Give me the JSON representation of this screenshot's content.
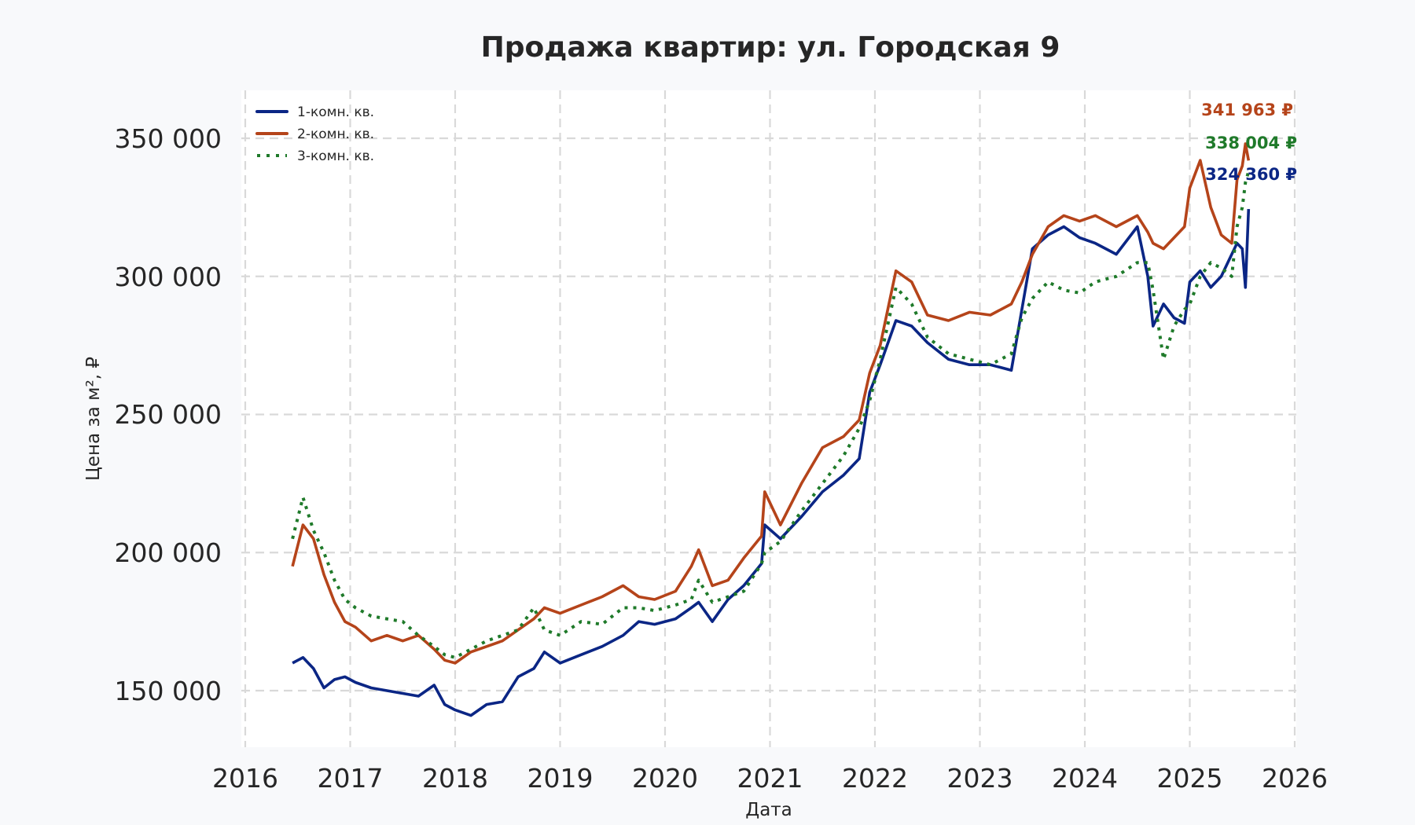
{
  "chart_data": {
    "type": "line",
    "title": "Продажа квартир: ул. Городская 9",
    "xlabel": "Дата",
    "ylabel": "Цена за м², ₽",
    "xlim": [
      2016,
      2026
    ],
    "ylim": [
      130000,
      365000
    ],
    "grid": true,
    "legend_position": "upper left",
    "x_ticks": [
      "2016",
      "2017",
      "2018",
      "2019",
      "2020",
      "2021",
      "2022",
      "2023",
      "2024",
      "2025",
      "2026"
    ],
    "y_ticks": [
      "150 000",
      "200 000",
      "250 000",
      "300 000",
      "350 000"
    ],
    "y_tick_values": [
      150000,
      200000,
      250000,
      300000,
      350000
    ],
    "x": [
      2016.45,
      2016.55,
      2016.65,
      2016.75,
      2016.85,
      2016.95,
      2017.05,
      2017.2,
      2017.35,
      2017.5,
      2017.65,
      2017.8,
      2017.9,
      2018.0,
      2018.15,
      2018.3,
      2018.45,
      2018.6,
      2018.75,
      2018.85,
      2019.0,
      2019.2,
      2019.4,
      2019.6,
      2019.75,
      2019.9,
      2020.1,
      2020.25,
      2020.32,
      2020.45,
      2020.6,
      2020.75,
      2020.92,
      2020.95,
      2021.1,
      2021.3,
      2021.5,
      2021.7,
      2021.85,
      2021.95,
      2022.05,
      2022.2,
      2022.35,
      2022.5,
      2022.7,
      2022.9,
      2023.1,
      2023.3,
      2023.4,
      2023.5,
      2023.65,
      2023.8,
      2023.95,
      2024.1,
      2024.3,
      2024.5,
      2024.6,
      2024.65,
      2024.75,
      2024.85,
      2024.95,
      2025.0,
      2025.1,
      2025.2,
      2025.3,
      2025.4,
      2025.45,
      2025.5,
      2025.53,
      2025.56
    ],
    "series": [
      {
        "name": "1-комн. кв.",
        "color": "#0b2685",
        "style": "solid",
        "values": [
          160000,
          162000,
          158000,
          151000,
          154000,
          155000,
          153000,
          151000,
          150000,
          149000,
          148000,
          152000,
          145000,
          143000,
          141000,
          145000,
          146000,
          155000,
          158000,
          164000,
          160000,
          163000,
          166000,
          170000,
          175000,
          174000,
          176000,
          180000,
          182000,
          175000,
          183000,
          188000,
          196000,
          210000,
          205000,
          213000,
          222000,
          228000,
          234000,
          258000,
          268000,
          284000,
          282000,
          276000,
          270000,
          268000,
          268000,
          266000,
          288000,
          310000,
          315000,
          318000,
          314000,
          312000,
          308000,
          318000,
          300000,
          282000,
          290000,
          285000,
          283000,
          298000,
          302000,
          296000,
          300000,
          308000,
          312000,
          310000,
          296000,
          324360
        ]
      },
      {
        "name": "2-комн. кв.",
        "color": "#b5441a",
        "style": "solid",
        "values": [
          195000,
          210000,
          205000,
          192000,
          182000,
          175000,
          173000,
          168000,
          170000,
          168000,
          170000,
          165000,
          161000,
          160000,
          164000,
          166000,
          168000,
          172000,
          176000,
          180000,
          178000,
          181000,
          184000,
          188000,
          184000,
          183000,
          186000,
          195000,
          201000,
          188000,
          190000,
          198000,
          206000,
          222000,
          210000,
          225000,
          238000,
          242000,
          248000,
          265000,
          275000,
          302000,
          298000,
          286000,
          284000,
          287000,
          286000,
          290000,
          298000,
          308000,
          318000,
          322000,
          320000,
          322000,
          318000,
          322000,
          316000,
          312000,
          310000,
          314000,
          318000,
          332000,
          342000,
          325000,
          315000,
          312000,
          335000,
          340000,
          348000,
          341963
        ]
      },
      {
        "name": "3-комн. кв.",
        "color": "#1f7a2a",
        "style": "dotted",
        "values": [
          205000,
          220000,
          208000,
          200000,
          190000,
          183000,
          180000,
          177000,
          176000,
          175000,
          170000,
          166000,
          163000,
          162000,
          165000,
          168000,
          170000,
          172000,
          180000,
          172000,
          170000,
          175000,
          174000,
          180000,
          180000,
          179000,
          181000,
          183000,
          190000,
          182000,
          184000,
          186000,
          196000,
          200000,
          204000,
          215000,
          225000,
          235000,
          245000,
          255000,
          270000,
          296000,
          290000,
          278000,
          272000,
          270000,
          268000,
          272000,
          285000,
          292000,
          298000,
          295000,
          294000,
          298000,
          300000,
          305000,
          305000,
          295000,
          270000,
          282000,
          288000,
          290000,
          300000,
          305000,
          303000,
          300000,
          318000,
          325000,
          334000,
          338004
        ]
      }
    ],
    "annotations": [
      {
        "text": "341 963 ₽",
        "series": "2-комн. кв.",
        "color": "#b5441a"
      },
      {
        "text": "338 004 ₽",
        "series": "3-комн. кв.",
        "color": "#1f7a2a"
      },
      {
        "text": "324 360 ₽",
        "series": "1-комн. кв.",
        "color": "#0b2685"
      }
    ]
  },
  "legend": {
    "items": [
      {
        "label": "1-комн. кв.",
        "color": "#0b2685",
        "style": "solid"
      },
      {
        "label": "2-комн. кв.",
        "color": "#b5441a",
        "style": "solid"
      },
      {
        "label": "3-комн. кв.",
        "color": "#1f7a2a",
        "style": "dotted"
      }
    ]
  },
  "colors": {
    "background": "#f8f9fb",
    "plot_background": "#ffffff",
    "grid": "#d9d9d9",
    "text": "#262626"
  }
}
